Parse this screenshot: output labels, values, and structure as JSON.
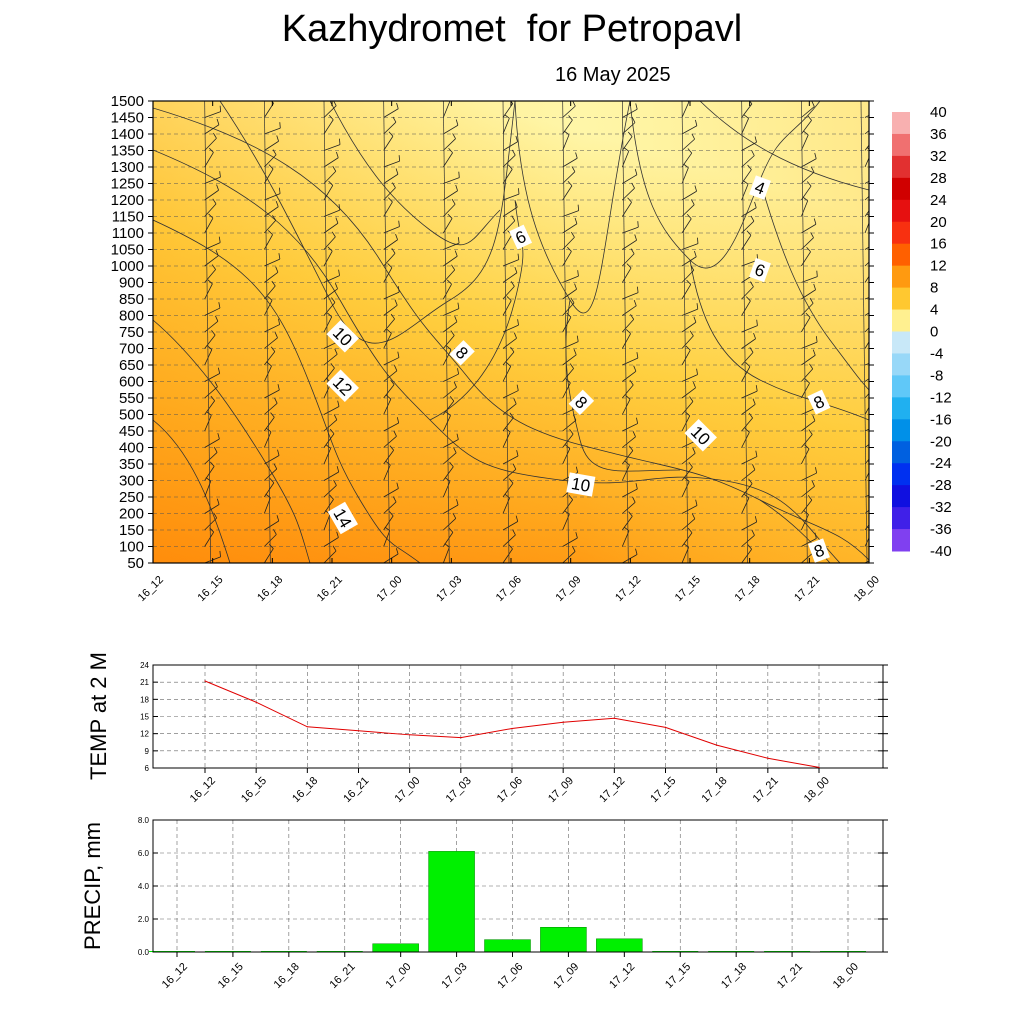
{
  "title": "Kazhydromet  for Petropavl",
  "subtitle": "16 May 2025",
  "colors": {
    "warm_light": "#fff6a8",
    "warm_mid": "#ffc02e",
    "warm_dark": "#ff7a00",
    "temp_line": "#e00000",
    "precip_bar": "#00f000"
  },
  "chart_data": [
    {
      "type": "heatmap",
      "description_kind": "cross-section temperature with wind barbs",
      "x_ticks": [
        "16_12",
        "16_15",
        "16_18",
        "16_21",
        "17_00",
        "17_03",
        "17_06",
        "17_09",
        "17_12",
        "17_15",
        "17_18",
        "17_21",
        "18_00"
      ],
      "y_ticks": [
        "1500",
        "1450",
        "1400",
        "1350",
        "1300",
        "1250",
        "1200",
        "1150",
        "1100",
        "1050",
        "1000",
        "900",
        "850",
        "800",
        "750",
        "700",
        "650",
        "600",
        "550",
        "500",
        "450",
        "400",
        "350",
        "300",
        "250",
        "200",
        "150",
        "100",
        "50"
      ],
      "contour_labels": [
        {
          "text": "4",
          "x": "17_18",
          "y_level": "1250"
        },
        {
          "text": "6",
          "x": "17_06",
          "y_level": "1100"
        },
        {
          "text": "6",
          "x": "17_18",
          "y_level": "1000"
        },
        {
          "text": "10",
          "x": "16_21",
          "y_level": "750"
        },
        {
          "text": "8",
          "x": "17_03",
          "y_level": "700"
        },
        {
          "text": "12",
          "x": "16_21",
          "y_level": "600"
        },
        {
          "text": "8",
          "x": "17_09",
          "y_level": "550"
        },
        {
          "text": "8",
          "x": "17_21",
          "y_level": "550"
        },
        {
          "text": "10",
          "x": "17_15",
          "y_level": "450"
        },
        {
          "text": "10",
          "x": "17_09",
          "y_level": "300"
        },
        {
          "text": "14",
          "x": "16_21",
          "y_level": "200"
        },
        {
          "text": "8",
          "x": "17_21",
          "y_level": "100"
        }
      ],
      "colorbar_labels": [
        "40",
        "36",
        "32",
        "28",
        "24",
        "20",
        "16",
        "12",
        "8",
        "4",
        "0",
        "-4",
        "-8",
        "-12",
        "-16",
        "-20",
        "-24",
        "-28",
        "-32",
        "-36",
        "-40"
      ]
    },
    {
      "type": "line",
      "ylabel": "TEMP at 2 M",
      "x": [
        "16_12",
        "16_15",
        "16_18",
        "16_21",
        "17_00",
        "17_03",
        "17_06",
        "17_09",
        "17_12",
        "17_15",
        "17_18",
        "17_21",
        "18_00"
      ],
      "values": [
        21.2,
        17.5,
        13.2,
        12.5,
        11.8,
        11.3,
        12.9,
        14.0,
        14.7,
        13.1,
        10.0,
        7.7,
        6.1
      ],
      "ylim": [
        6,
        24
      ],
      "y_ticks": [
        "24",
        "21",
        "18",
        "15",
        "12",
        "9",
        "6"
      ]
    },
    {
      "type": "bar",
      "ylabel": "PRECIP, mm",
      "categories": [
        "16_12",
        "16_15",
        "16_18",
        "16_21",
        "17_00",
        "17_03",
        "17_06",
        "17_09",
        "17_12",
        "17_15",
        "17_18",
        "17_21",
        "18_00"
      ],
      "values": [
        0,
        0,
        0,
        0,
        0.5,
        6.1,
        0.75,
        1.5,
        0.8,
        0,
        0,
        0,
        0
      ],
      "ylim": [
        0,
        8
      ],
      "y_ticks": [
        "8.0",
        "6.0",
        "4.0",
        "2.0",
        "0.0"
      ]
    }
  ]
}
